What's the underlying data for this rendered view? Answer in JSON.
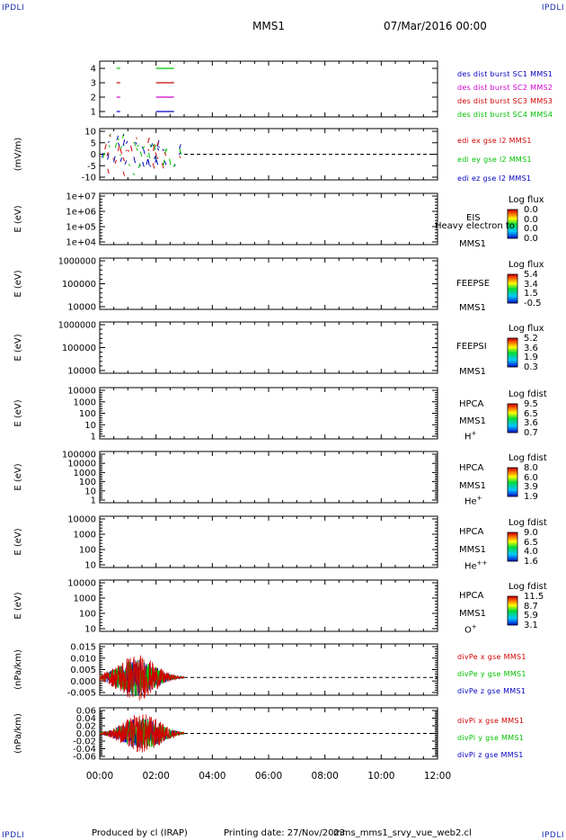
{
  "corners": {
    "tl": "IPDLI",
    "tr": "IPDLI",
    "bl": "IPDLI",
    "br": "IPDLI"
  },
  "header": {
    "mission": "MMS1",
    "date": "07/Mar/2016 00:00"
  },
  "footer": {
    "produced_by": "Produced by cl (IRAP)",
    "printing_date": "Printing date: 27/Nov/2023",
    "filename": "mms_mms1_srvy_vue_web2.cl"
  },
  "colors": {
    "red": "#d00000",
    "green": "#00c000",
    "blue": "#0000c0",
    "magenta": "#d000d0"
  },
  "chart_data": [
    {
      "type": "line",
      "ylabel": "",
      "yticks": [
        "4",
        "3",
        "2",
        "1"
      ],
      "series": [
        {
          "name": "des dist burst SC1 MMS1",
          "color": "#0000c0"
        },
        {
          "name": "des dist burst SC2 MMS2",
          "color": "#d000d0"
        },
        {
          "name": "des dist burst SC3 MMS3",
          "color": "#d00000"
        },
        {
          "name": "des dist burst SC4 MMS4",
          "color": "#00c000"
        }
      ]
    },
    {
      "type": "line",
      "ylabel": "(mV/m)",
      "yticks": [
        "10",
        "5",
        "0",
        "-5",
        "-10"
      ],
      "ylim": [
        -12,
        12
      ],
      "series": [
        {
          "name": "edi ex gse l2 MMS1",
          "color": "#d00000"
        },
        {
          "name": "edi ey gse l2 MMS1",
          "color": "#00c000"
        },
        {
          "name": "edi ez gse l2 MMS1",
          "color": "#0000c0"
        }
      ]
    },
    {
      "type": "heatmap",
      "ylabel": "E (eV)",
      "yticks": [
        "1e+07",
        "1e+06",
        "1e+05",
        "1e+04"
      ],
      "instrument": "EIS",
      "instrument_line2": "MMS1",
      "overlay_text": "Heavy electron to",
      "colorbar_title": "Log flux",
      "colorbar_ticks": [
        "0.0",
        "0.0",
        "0.0",
        "0.0"
      ]
    },
    {
      "type": "heatmap",
      "ylabel": "E (eV)",
      "yticks": [
        "1000000",
        "100000",
        "10000"
      ],
      "instrument": "FEEPSE",
      "instrument_line2": "MMS1",
      "colorbar_title": "Log flux",
      "colorbar_ticks": [
        "5.4",
        "3.4",
        "1.5",
        "-0.5"
      ]
    },
    {
      "type": "heatmap",
      "ylabel": "E (eV)",
      "yticks": [
        "1000000",
        "100000",
        "10000"
      ],
      "instrument": "FEEPSI",
      "instrument_line2": "MMS1",
      "colorbar_title": "Log flux",
      "colorbar_ticks": [
        "5.2",
        "3.6",
        "1.9",
        "0.3"
      ]
    },
    {
      "type": "heatmap",
      "ylabel": "E (eV)",
      "yticks": [
        "10000",
        "1000",
        "100",
        "10",
        "1"
      ],
      "instrument": "HPCA",
      "instrument_line2": "MMS1",
      "species": "H",
      "species_sup": "+",
      "colorbar_title": "Log fdist",
      "colorbar_ticks": [
        "9.5",
        "6.5",
        "3.6",
        "0.7"
      ]
    },
    {
      "type": "heatmap",
      "ylabel": "E (eV)",
      "yticks": [
        "100000",
        "10000",
        "1000",
        "100",
        "10",
        "1"
      ],
      "instrument": "HPCA",
      "instrument_line2": "MMS1",
      "species": "He",
      "species_sup": "+",
      "colorbar_title": "Log fdist",
      "colorbar_ticks": [
        "8.0",
        "6.0",
        "3.9",
        "1.9"
      ]
    },
    {
      "type": "heatmap",
      "ylabel": "E (eV)",
      "yticks": [
        "10000",
        "1000",
        "100",
        "10"
      ],
      "instrument": "HPCA",
      "instrument_line2": "MMS1",
      "species": "He",
      "species_sup": "++",
      "colorbar_title": "Log fdist",
      "colorbar_ticks": [
        "9.0",
        "6.5",
        "4.0",
        "1.6"
      ]
    },
    {
      "type": "heatmap",
      "ylabel": "E (eV)",
      "yticks": [
        "10000",
        "1000",
        "100",
        "10"
      ],
      "instrument": "HPCA",
      "instrument_line2": "MMS1",
      "species": "O",
      "species_sup": "+",
      "colorbar_title": "Log fdist",
      "colorbar_ticks": [
        "11.5",
        "8.7",
        "5.9",
        "3.1"
      ]
    },
    {
      "type": "line",
      "ylabel": "(nPa/km)",
      "yticks": [
        "0.015",
        "0.010",
        "0.005",
        "0.000",
        "-0.005"
      ],
      "ylim": [
        -0.009,
        0.017
      ],
      "series": [
        {
          "name": "divPe x gse MMS1",
          "color": "#d00000"
        },
        {
          "name": "divPe y gse MMS1",
          "color": "#00c000"
        },
        {
          "name": "divPe z gse MMS1",
          "color": "#0000c0"
        }
      ]
    },
    {
      "type": "line",
      "ylabel": "(nPa/km)",
      "yticks": [
        "0.06",
        "0.04",
        "0.02",
        "0.00",
        "-0.02",
        "-0.04",
        "-0.06"
      ],
      "ylim": [
        -0.07,
        0.07
      ],
      "series": [
        {
          "name": "divPi x gse MMS1",
          "color": "#d00000"
        },
        {
          "name": "divPi y gse MMS1",
          "color": "#00c000"
        },
        {
          "name": "divPi z gse MMS1",
          "color": "#0000c0"
        }
      ]
    }
  ],
  "xaxis": {
    "ticks": [
      "00:00",
      "02:00",
      "04:00",
      "06:00",
      "08:00",
      "10:00",
      "12:00"
    ],
    "range_hours": [
      0,
      12
    ]
  }
}
